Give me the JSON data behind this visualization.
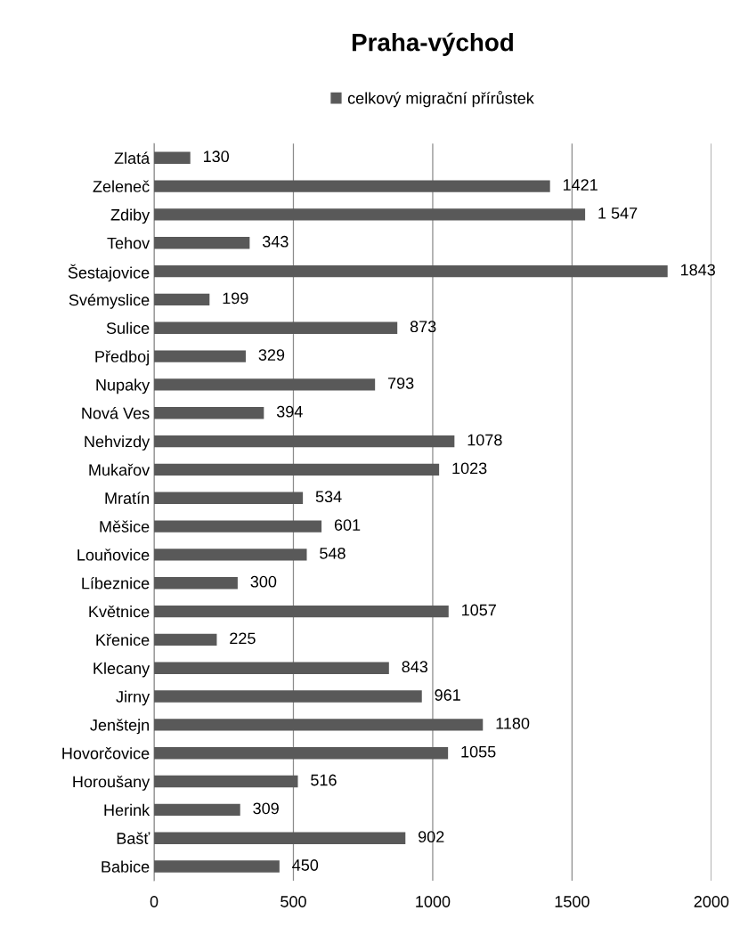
{
  "chart_data": {
    "type": "bar",
    "orientation": "horizontal",
    "title": "Praha-východ",
    "categories": [
      "Zlatá",
      "Zeleneč",
      "Zdiby",
      "Tehov",
      "Šestajovice",
      "Svémyslice",
      "Sulice",
      "Předboj",
      "Nupaky",
      "Nová Ves",
      "Nehvizdy",
      "Mukařov",
      "Mratín",
      "Měšice",
      "Louňovice",
      "Líbeznice",
      "Květnice",
      "Křenice",
      "Klecany",
      "Jirny",
      "Jenštejn",
      "Hovorčovice",
      "Horoušany",
      "Herink",
      "Bašť",
      "Babice"
    ],
    "series": [
      {
        "name": "celkový migrační přírůstek",
        "color": "#595959",
        "values": [
          130,
          1421,
          1547,
          343,
          1843,
          199,
          873,
          329,
          793,
          394,
          1078,
          1023,
          534,
          601,
          548,
          300,
          1057,
          225,
          843,
          961,
          1180,
          1055,
          516,
          309,
          902,
          450
        ],
        "value_labels": [
          "130",
          "1421",
          "1 547",
          "343",
          "1843",
          "199",
          "873",
          "329",
          "793",
          "394",
          "1078",
          "1023",
          "534",
          "601",
          "548",
          "300",
          "1057",
          "225",
          "843",
          "961",
          "1180",
          "1055",
          "516",
          "309",
          "902",
          "450"
        ]
      }
    ],
    "xlim": [
      0,
      2000
    ],
    "xticks": [
      0,
      500,
      1000,
      1500,
      2000
    ],
    "grid": "x",
    "legend": "top"
  }
}
